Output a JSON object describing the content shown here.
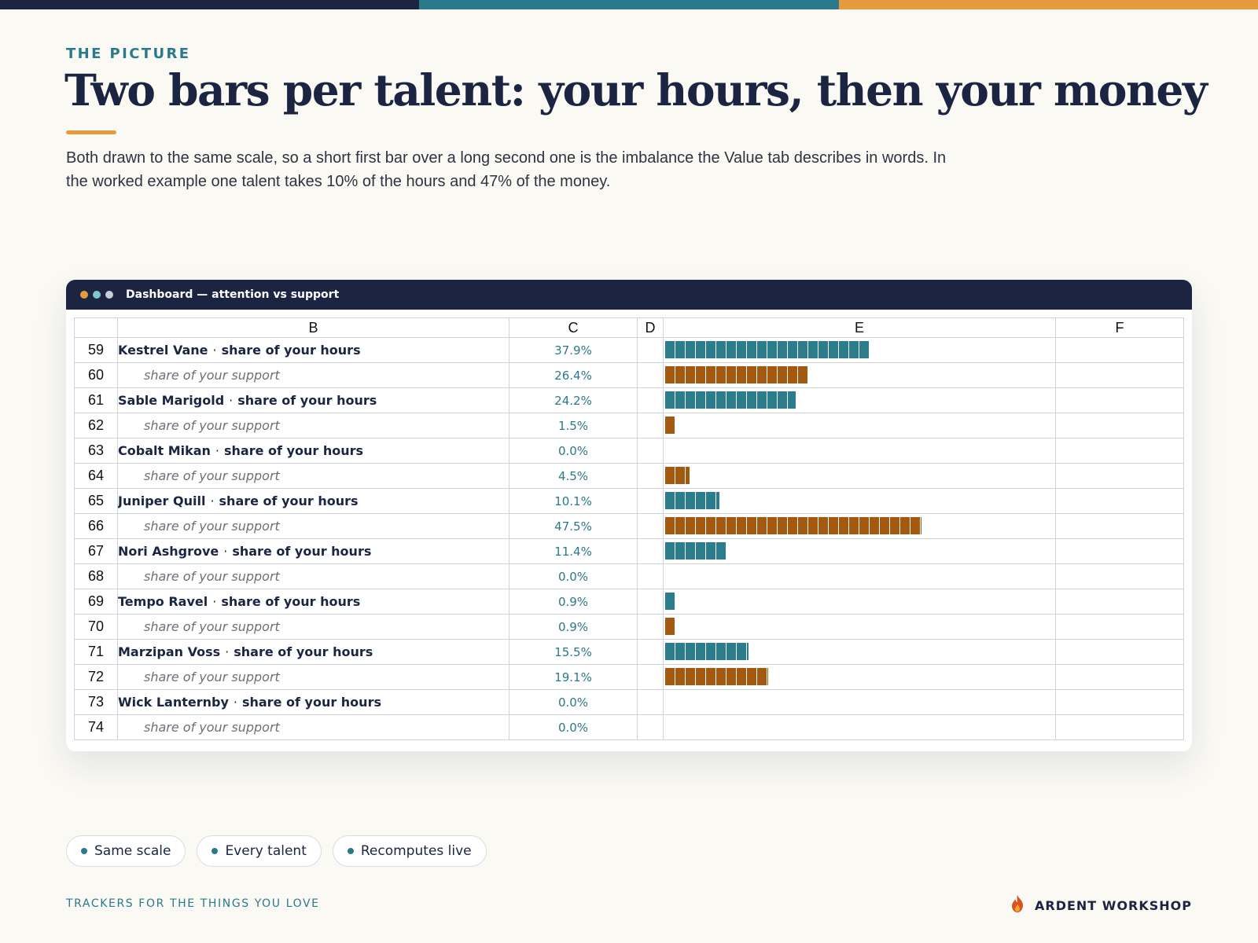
{
  "colors": {
    "navy": "#1b2542",
    "teal": "#2a7a8c",
    "orange": "#e59a3c",
    "hours_bar": "#2b7d8e",
    "support_bar": "#a35a10",
    "background": "#faf9f4"
  },
  "header": {
    "eyebrow": "THE PICTURE",
    "title": "Two bars per talent: your hours, then your money",
    "subtitle": "Both drawn to the same scale, so a short first bar over a long second one is the imbalance the Value tab describes in words. In the worked example one talent takes 10% of the hours and 47% of the money."
  },
  "window": {
    "title": "Dashboard — attention vs support",
    "dot_colors": [
      "#e59a3c",
      "#7fc4d2",
      "#c9ced6"
    ]
  },
  "sheet": {
    "columns": [
      "B",
      "C",
      "D",
      "E",
      "F"
    ],
    "separator": "·",
    "rows": [
      {
        "row": "59",
        "talent": "Kestrel Vane",
        "label": "share of your hours",
        "kind": "hours",
        "value": "37.9%",
        "fraction": 0.379
      },
      {
        "row": "60",
        "talent": "",
        "label": "share of your support",
        "kind": "support",
        "value": "26.4%",
        "fraction": 0.264
      },
      {
        "row": "61",
        "talent": "Sable Marigold",
        "label": "share of your hours",
        "kind": "hours",
        "value": "24.2%",
        "fraction": 0.242
      },
      {
        "row": "62",
        "talent": "",
        "label": "share of your support",
        "kind": "support",
        "value": "1.5%",
        "fraction": 0.015
      },
      {
        "row": "63",
        "talent": "Cobalt Mikan",
        "label": "share of your hours",
        "kind": "hours",
        "value": "0.0%",
        "fraction": 0.0
      },
      {
        "row": "64",
        "talent": "",
        "label": "share of your support",
        "kind": "support",
        "value": "4.5%",
        "fraction": 0.045
      },
      {
        "row": "65",
        "talent": "Juniper Quill",
        "label": "share of your hours",
        "kind": "hours",
        "value": "10.1%",
        "fraction": 0.101
      },
      {
        "row": "66",
        "talent": "",
        "label": "share of your support",
        "kind": "support",
        "value": "47.5%",
        "fraction": 0.475
      },
      {
        "row": "67",
        "talent": "Nori Ashgrove",
        "label": "share of your hours",
        "kind": "hours",
        "value": "11.4%",
        "fraction": 0.114
      },
      {
        "row": "68",
        "talent": "",
        "label": "share of your support",
        "kind": "support",
        "value": "0.0%",
        "fraction": 0.0
      },
      {
        "row": "69",
        "talent": "Tempo Ravel",
        "label": "share of your hours",
        "kind": "hours",
        "value": "0.9%",
        "fraction": 0.009
      },
      {
        "row": "70",
        "talent": "",
        "label": "share of your support",
        "kind": "support",
        "value": "0.9%",
        "fraction": 0.009
      },
      {
        "row": "71",
        "talent": "Marzipan Voss",
        "label": "share of your hours",
        "kind": "hours",
        "value": "15.5%",
        "fraction": 0.155
      },
      {
        "row": "72",
        "talent": "",
        "label": "share of your support",
        "kind": "support",
        "value": "19.1%",
        "fraction": 0.191
      },
      {
        "row": "73",
        "talent": "Wick Lanternby",
        "label": "share of your hours",
        "kind": "hours",
        "value": "0.0%",
        "fraction": 0.0
      },
      {
        "row": "74",
        "talent": "",
        "label": "share of your support",
        "kind": "support",
        "value": "0.0%",
        "fraction": 0.0
      }
    ]
  },
  "chips": [
    "Same scale",
    "Every talent",
    "Recomputes live"
  ],
  "footer": {
    "tagline": "TRACKERS FOR THE THINGS YOU LOVE",
    "brand": "ARDENT WORKSHOP",
    "brand_icon": "flame-icon"
  }
}
